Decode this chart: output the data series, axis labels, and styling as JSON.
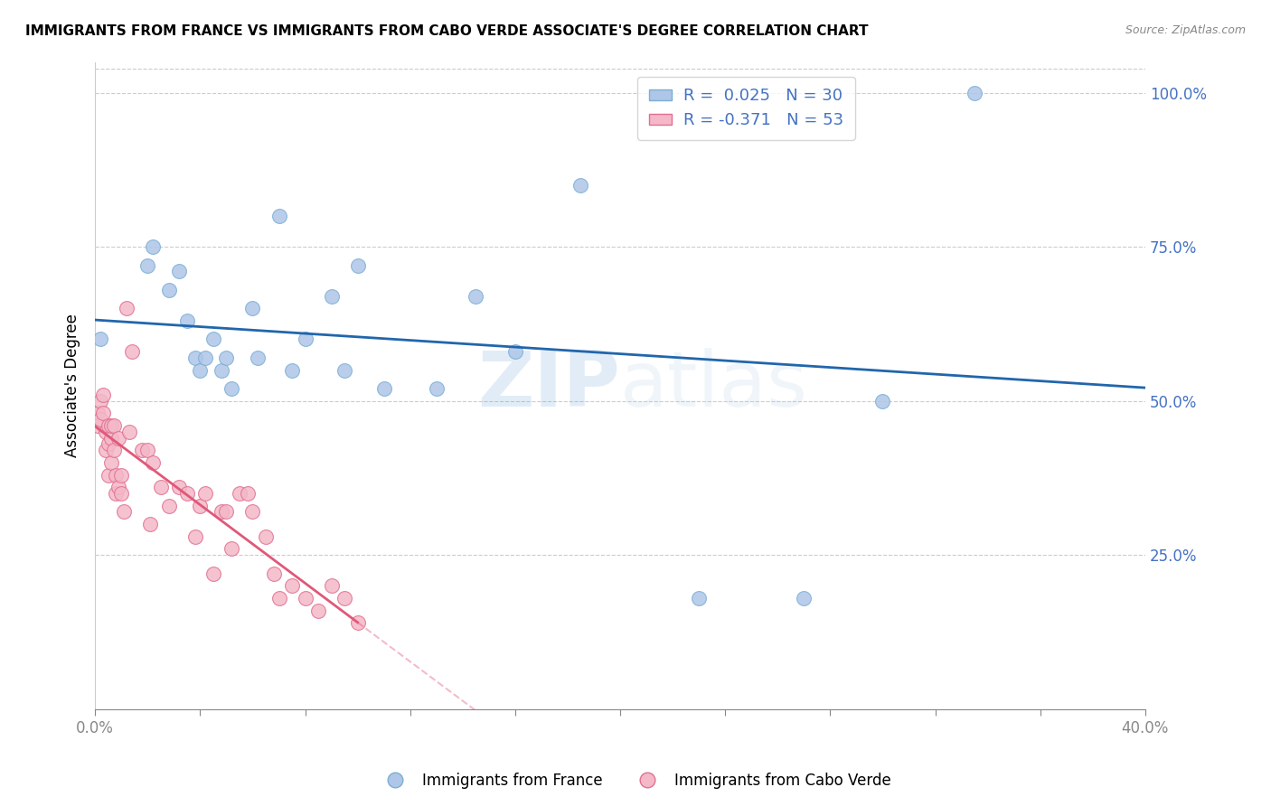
{
  "title": "IMMIGRANTS FROM FRANCE VS IMMIGRANTS FROM CABO VERDE ASSOCIATE'S DEGREE CORRELATION CHART",
  "source": "Source: ZipAtlas.com",
  "ylabel": "Associate's Degree",
  "france_color": "#aec6e8",
  "france_edge_color": "#7bafd4",
  "caboverde_color": "#f4b8c8",
  "caboverde_edge_color": "#e07090",
  "france_line_color": "#2166ac",
  "caboverde_line_color": "#e05878",
  "legend_r_france": "R =  0.025",
  "legend_n_france": "N = 30",
  "legend_r_caboverde": "R = -0.371",
  "legend_n_caboverde": "N = 53",
  "watermark": "ZIPatlas",
  "xmin": 0.0,
  "xmax": 0.4,
  "ymin": 0.0,
  "ymax": 1.05,
  "france_x": [
    0.002,
    0.02,
    0.022,
    0.028,
    0.032,
    0.035,
    0.038,
    0.04,
    0.042,
    0.045,
    0.048,
    0.05,
    0.052,
    0.06,
    0.062,
    0.07,
    0.075,
    0.08,
    0.09,
    0.095,
    0.1,
    0.11,
    0.13,
    0.145,
    0.16,
    0.185,
    0.23,
    0.27,
    0.3,
    0.335
  ],
  "france_y": [
    0.6,
    0.72,
    0.75,
    0.68,
    0.71,
    0.63,
    0.57,
    0.55,
    0.57,
    0.6,
    0.55,
    0.57,
    0.52,
    0.65,
    0.57,
    0.8,
    0.55,
    0.6,
    0.67,
    0.55,
    0.72,
    0.52,
    0.52,
    0.67,
    0.58,
    0.85,
    0.18,
    0.18,
    0.5,
    1.0
  ],
  "caboverde_x": [
    0.001,
    0.001,
    0.002,
    0.002,
    0.003,
    0.003,
    0.004,
    0.004,
    0.005,
    0.005,
    0.005,
    0.006,
    0.006,
    0.006,
    0.007,
    0.007,
    0.008,
    0.008,
    0.009,
    0.009,
    0.01,
    0.01,
    0.011,
    0.012,
    0.013,
    0.014,
    0.018,
    0.02,
    0.021,
    0.022,
    0.025,
    0.028,
    0.032,
    0.035,
    0.038,
    0.04,
    0.042,
    0.045,
    0.048,
    0.05,
    0.052,
    0.055,
    0.058,
    0.06,
    0.065,
    0.068,
    0.07,
    0.075,
    0.08,
    0.085,
    0.09,
    0.095,
    0.1
  ],
  "caboverde_y": [
    0.48,
    0.46,
    0.5,
    0.47,
    0.51,
    0.48,
    0.45,
    0.42,
    0.46,
    0.43,
    0.38,
    0.44,
    0.4,
    0.46,
    0.46,
    0.42,
    0.38,
    0.35,
    0.36,
    0.44,
    0.38,
    0.35,
    0.32,
    0.65,
    0.45,
    0.58,
    0.42,
    0.42,
    0.3,
    0.4,
    0.36,
    0.33,
    0.36,
    0.35,
    0.28,
    0.33,
    0.35,
    0.22,
    0.32,
    0.32,
    0.26,
    0.35,
    0.35,
    0.32,
    0.28,
    0.22,
    0.18,
    0.2,
    0.18,
    0.16,
    0.2,
    0.18,
    0.14
  ]
}
